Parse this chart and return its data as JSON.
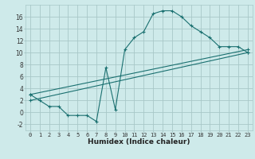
{
  "bg_color": "#ceeaea",
  "grid_color": "#a8c8c8",
  "line_color": "#1a7070",
  "marker_color": "#1a7070",
  "line1_x": [
    0,
    1,
    2,
    3,
    4,
    5,
    6,
    7,
    8,
    9,
    10,
    11,
    12,
    13,
    14,
    15,
    16,
    17,
    18,
    19,
    20,
    21,
    22,
    23
  ],
  "line1_y": [
    3,
    2,
    1,
    1,
    -0.5,
    -0.5,
    -0.5,
    -1.5,
    7.5,
    0.5,
    10.5,
    12.5,
    13.5,
    16.5,
    17,
    17,
    16,
    14.5,
    13.5,
    12.5,
    11,
    11,
    11,
    10
  ],
  "line2_x": [
    0,
    23
  ],
  "line2_y": [
    2,
    10
  ],
  "line3_x": [
    0,
    23
  ],
  "line3_y": [
    3,
    10.5
  ],
  "xlim": [
    -0.5,
    23.5
  ],
  "ylim": [
    -3,
    18
  ],
  "xticks": [
    0,
    1,
    2,
    3,
    4,
    5,
    6,
    7,
    8,
    9,
    10,
    11,
    12,
    13,
    14,
    15,
    16,
    17,
    18,
    19,
    20,
    21,
    22,
    23
  ],
  "yticks": [
    -2,
    0,
    2,
    4,
    6,
    8,
    10,
    12,
    14,
    16
  ],
  "xlabel": "Humidex (Indice chaleur)",
  "tick_fontsize": 5.0,
  "xlabel_fontsize": 6.5
}
